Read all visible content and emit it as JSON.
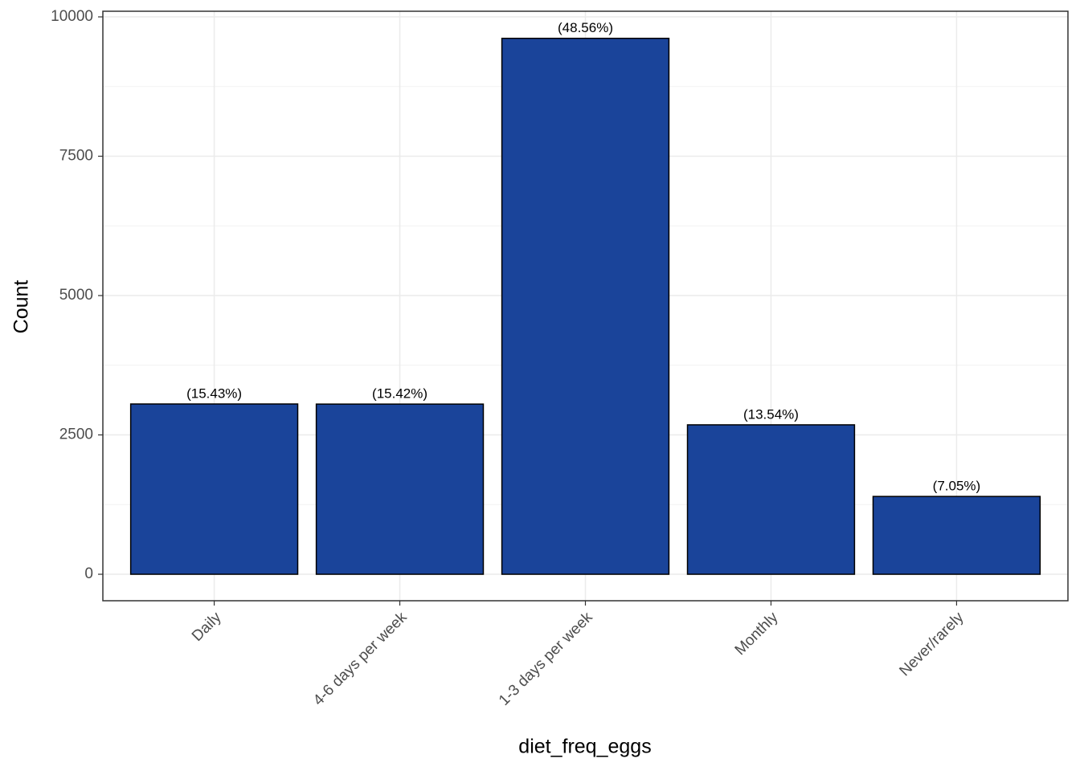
{
  "chart_data": {
    "type": "bar",
    "categories": [
      "Daily",
      "4-6 days per week",
      "1-3 days per week",
      "Monthly",
      "Never/rarely"
    ],
    "values": [
      3055,
      3053,
      9615,
      2681,
      1396
    ],
    "bar_labels": [
      "(15.43%)",
      "(15.42%)",
      "(48.56%)",
      "(13.54%)",
      "(7.05%)"
    ],
    "color": "#1a449a",
    "ylim": [
      -475,
      10101
    ],
    "yticks": [
      0,
      2500,
      5000,
      7500,
      10000
    ],
    "yminor": [
      1250,
      3750,
      6250,
      8750
    ],
    "grid": true,
    "xlabel": "diet_freq_eggs",
    "ylabel": "Count"
  }
}
